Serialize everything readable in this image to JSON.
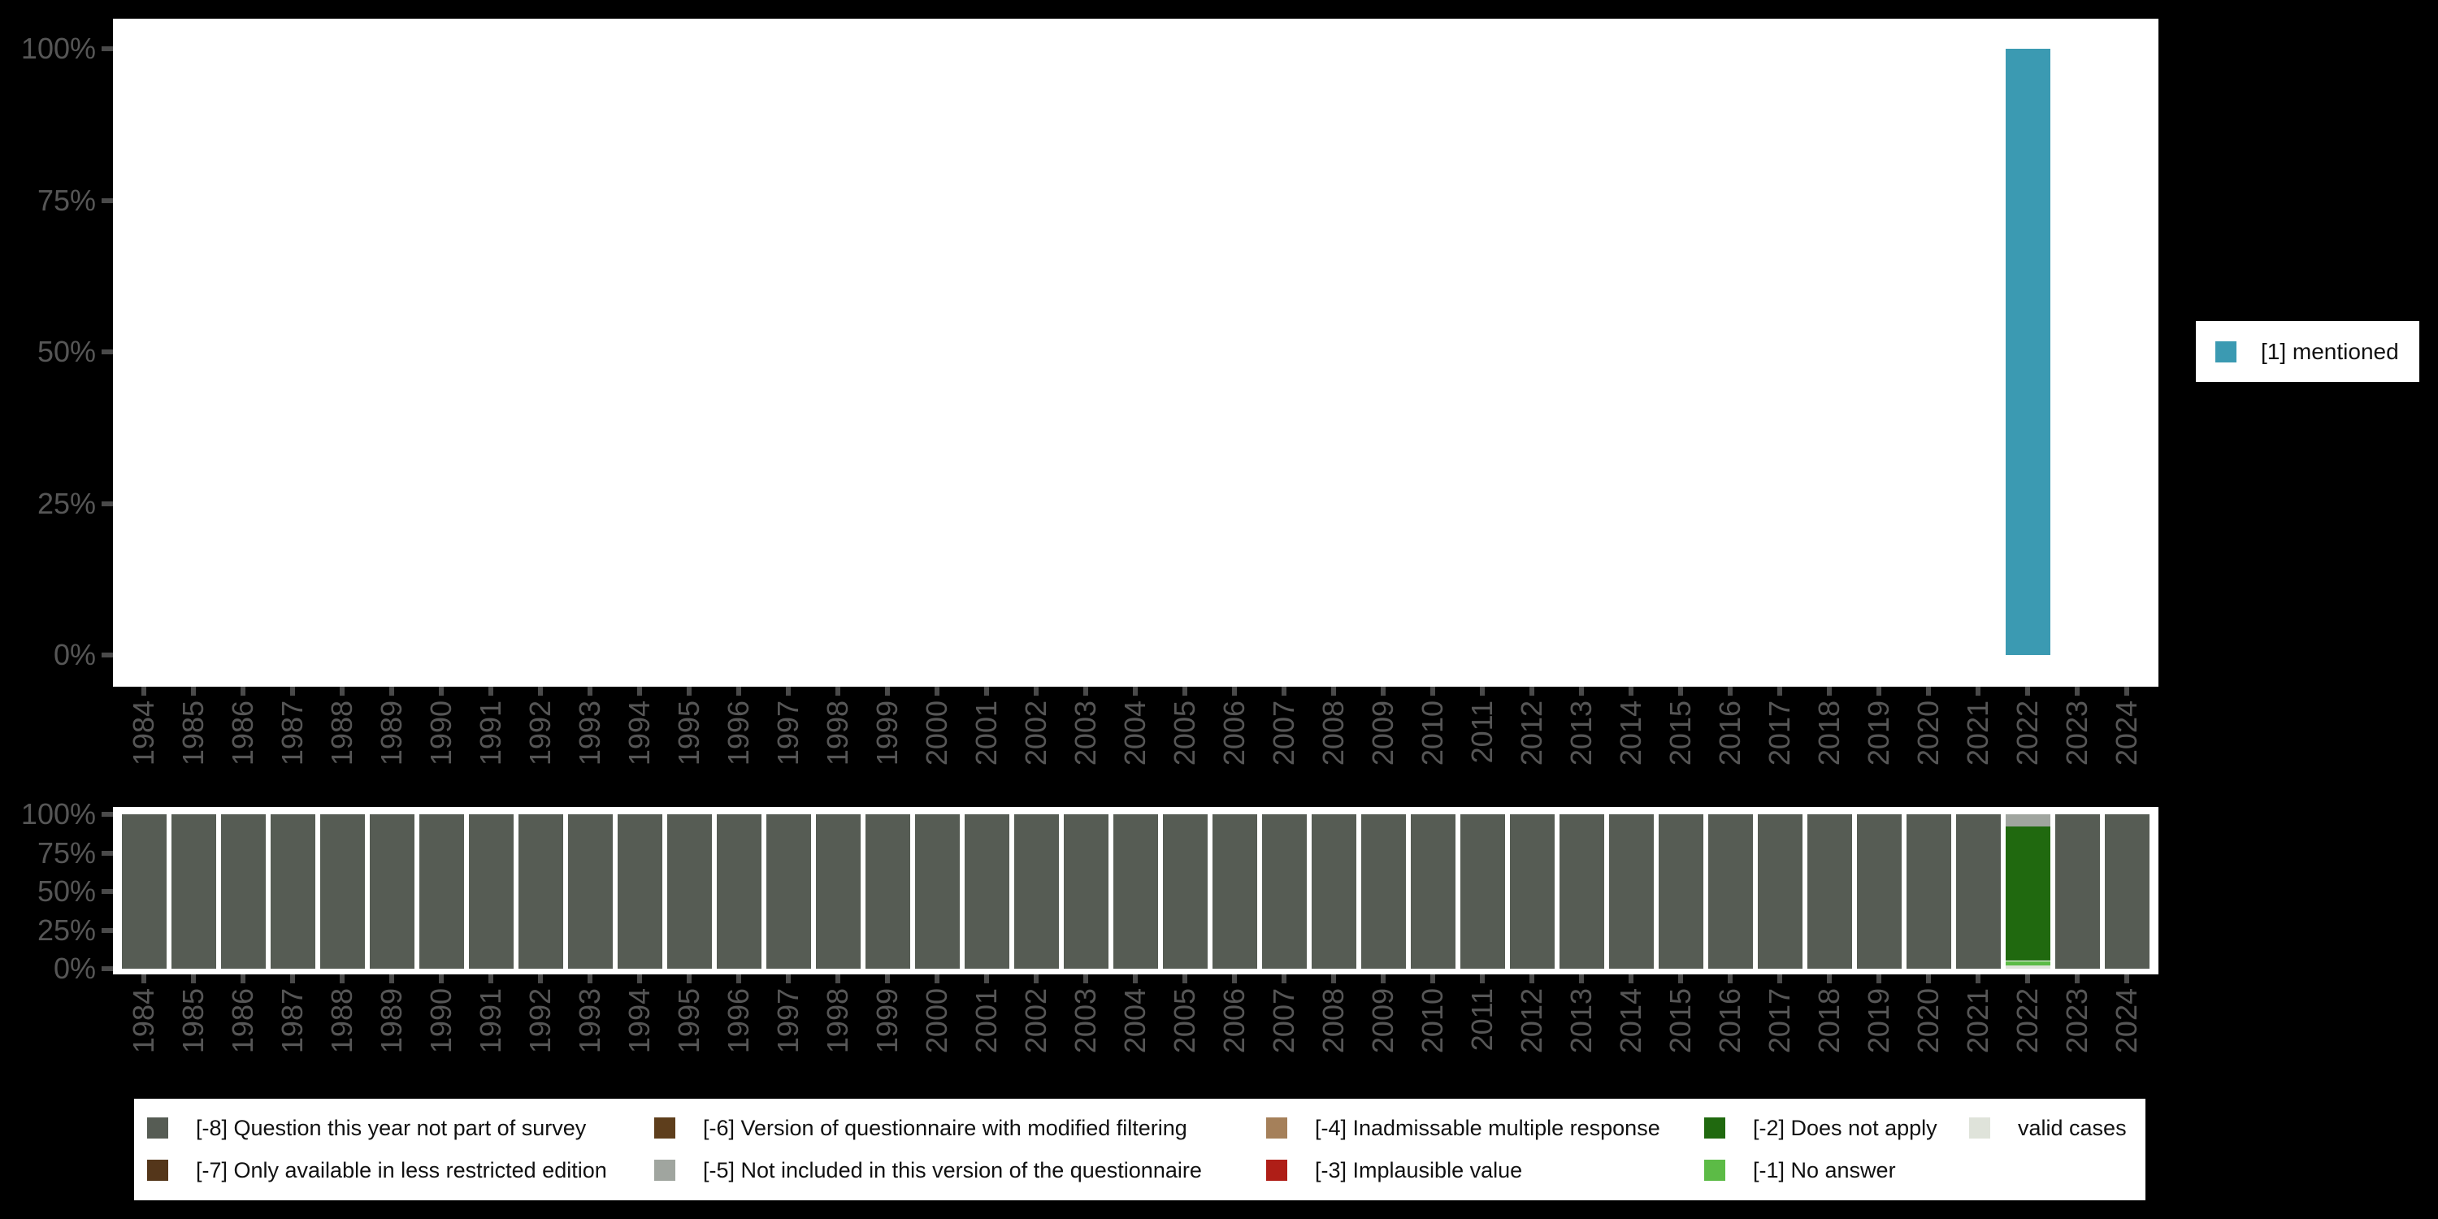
{
  "figure": {
    "background": "#000000",
    "panel_background": "#ffffff"
  },
  "palette": {
    "mentioned": "#3B9AB2",
    "m8": "#565C54",
    "m7": "#54361A",
    "m6": "#5E3E1C",
    "m5": "#A0A59F",
    "m4": "#A5805A",
    "m3": "#AF1E17",
    "m2": "#20690F",
    "m1": "#5CBB46",
    "valid": "#DFE3DA",
    "axis_text": "#565656",
    "tick": "#4A4A4A",
    "legend_text": "#111111"
  },
  "x_axis": {
    "years": [
      "1984",
      "1985",
      "1986",
      "1987",
      "1988",
      "1989",
      "1990",
      "1991",
      "1992",
      "1993",
      "1994",
      "1995",
      "1996",
      "1997",
      "1998",
      "1999",
      "2000",
      "2001",
      "2002",
      "2003",
      "2004",
      "2005",
      "2006",
      "2007",
      "2008",
      "2009",
      "2010",
      "2011",
      "2012",
      "2013",
      "2014",
      "2015",
      "2016",
      "2017",
      "2018",
      "2019",
      "2020",
      "2021",
      "2022",
      "2023",
      "2024"
    ]
  },
  "y_axis": {
    "tick_labels_top_to_bottom": [
      "100%",
      "75%",
      "50%",
      "25%",
      "0%"
    ]
  },
  "legend_mentioned": {
    "label": "[1] mentioned",
    "color_key": "mentioned"
  },
  "legend_missing": {
    "columns": [
      {
        "items": [
          {
            "color_key": "m8",
            "label": "[-8] Question this year not part of survey"
          },
          {
            "color_key": "m7",
            "label": "[-7] Only available in less restricted edition"
          }
        ]
      },
      {
        "items": [
          {
            "color_key": "m6",
            "label": "[-6] Version of questionnaire with modified filtering"
          },
          {
            "color_key": "m5",
            "label": "[-5] Not included in this version of the questionnaire"
          }
        ]
      },
      {
        "items": [
          {
            "color_key": "m4",
            "label": "[-4] Inadmissable multiple response"
          },
          {
            "color_key": "m3",
            "label": "[-3] Implausible value"
          }
        ]
      },
      {
        "items": [
          {
            "color_key": "m2",
            "label": "[-2] Does not apply"
          },
          {
            "color_key": "m1",
            "label": "[-1] No answer"
          }
        ]
      },
      {
        "items": [
          {
            "color_key": "valid",
            "label": "valid cases"
          }
        ]
      }
    ]
  },
  "chart_data": [
    {
      "type": "bar",
      "panel": "top",
      "title": "",
      "categories": [
        "1984",
        "1985",
        "1986",
        "1987",
        "1988",
        "1989",
        "1990",
        "1991",
        "1992",
        "1993",
        "1994",
        "1995",
        "1996",
        "1997",
        "1998",
        "1999",
        "2000",
        "2001",
        "2002",
        "2003",
        "2004",
        "2005",
        "2006",
        "2007",
        "2008",
        "2009",
        "2010",
        "2011",
        "2012",
        "2013",
        "2014",
        "2015",
        "2016",
        "2017",
        "2018",
        "2019",
        "2020",
        "2021",
        "2022",
        "2023",
        "2024"
      ],
      "series": [
        {
          "name": "[1] mentioned",
          "color_key": "mentioned",
          "values_pct_by_year": {
            "2022": 100
          },
          "note": "all other years have no bar (no valid cases)"
        }
      ],
      "ylim": [
        0,
        100
      ],
      "yticks_pct": [
        0,
        25,
        50,
        75,
        100
      ],
      "grid": false,
      "legend_position": "right-middle"
    },
    {
      "type": "stacked-bar",
      "panel": "bottom",
      "title": "",
      "categories": [
        "1984",
        "1985",
        "1986",
        "1987",
        "1988",
        "1989",
        "1990",
        "1991",
        "1992",
        "1993",
        "1994",
        "1995",
        "1996",
        "1997",
        "1998",
        "1999",
        "2000",
        "2001",
        "2002",
        "2003",
        "2004",
        "2005",
        "2006",
        "2007",
        "2008",
        "2009",
        "2010",
        "2011",
        "2012",
        "2013",
        "2014",
        "2015",
        "2016",
        "2017",
        "2018",
        "2019",
        "2020",
        "2021",
        "2022",
        "2023",
        "2024"
      ],
      "default_stack_top_to_bottom": [
        {
          "color_key": "m8",
          "label": "[-8] Question this year not part of survey",
          "pct": 100
        }
      ],
      "year_overrides_top_to_bottom": {
        "2022": [
          {
            "color_key": "m5",
            "label": "[-5] Not included in this version of the questionnaire",
            "pct": 8
          },
          {
            "color_key": "m2",
            "label": "[-2] Does not apply",
            "pct": 87
          },
          {
            "color_key": "m1",
            "label": "[-1] No answer",
            "pct": 3
          },
          {
            "color_key": "valid",
            "label": "valid cases",
            "pct": 2
          }
        ]
      },
      "ylim": [
        0,
        100
      ],
      "yticks_pct": [
        0,
        25,
        50,
        75,
        100
      ],
      "grid": false,
      "legend_position": "bottom"
    }
  ]
}
